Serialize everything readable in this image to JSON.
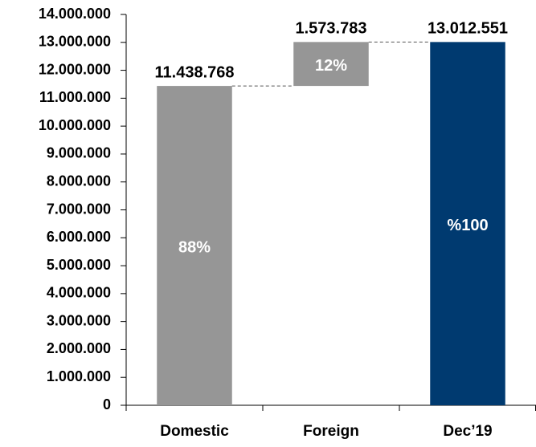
{
  "chart_data": {
    "type": "waterfall",
    "categories": [
      "Domestic",
      "Foreign",
      "Dec’19"
    ],
    "values": [
      11438768,
      1573783,
      13012551
    ],
    "value_labels": [
      "11.438.768",
      "1.573.783",
      "13.012.551"
    ],
    "share_labels": [
      "88%",
      "12%",
      "%100"
    ],
    "measure": [
      "relative",
      "relative",
      "total"
    ],
    "colors": [
      "#969696",
      "#969696",
      "#003a70"
    ],
    "ylim": [
      0,
      14000000
    ],
    "yticks": [
      0,
      {
        "value": 1000000,
        "label": "1.000.000"
      },
      {
        "value": 2000000,
        "label": "2.000.000"
      },
      {
        "value": 3000000,
        "label": "3.000.000"
      },
      {
        "value": 4000000,
        "label": "4.000.000"
      },
      {
        "value": 5000000,
        "label": "5.000.000"
      },
      {
        "value": 6000000,
        "label": "6.000.000"
      },
      {
        "value": 7000000,
        "label": "7.000.000"
      },
      {
        "value": 8000000,
        "label": "8.000.000"
      },
      {
        "value": 9000000,
        "label": "9.000.000"
      },
      {
        "value": 10000000,
        "label": "10.000.000"
      },
      {
        "value": 11000000,
        "label": "11.000.000"
      },
      {
        "value": 12000000,
        "label": "12.000.000"
      },
      {
        "value": 13000000,
        "label": "13.000.000"
      },
      {
        "value": 14000000,
        "label": "14.000.000"
      }
    ]
  }
}
